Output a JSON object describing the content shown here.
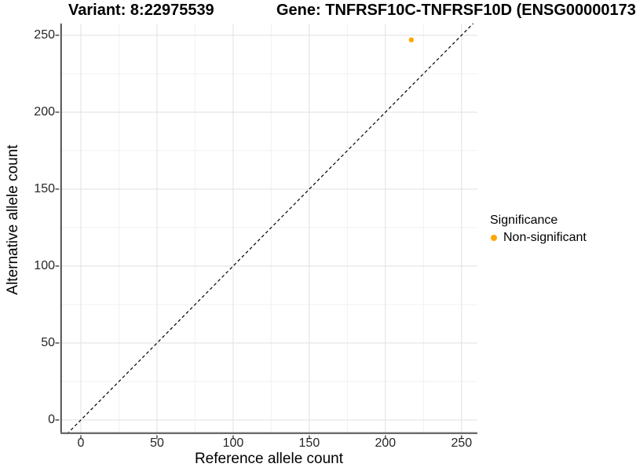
{
  "chart_data": {
    "type": "scatter",
    "title_left": "Variant: 8:22975539",
    "title_right": "Gene: TNFRSF10C-TNFRSF10D (ENSG00000173",
    "xlabel": "Reference allele count",
    "ylabel": "Alternative allele count",
    "x_ticks": [
      0,
      50,
      100,
      150,
      200,
      250
    ],
    "y_ticks": [
      0,
      50,
      100,
      150,
      200,
      250
    ],
    "xlim": [
      -13.4,
      260.4
    ],
    "ylim": [
      -9.2,
      257.6
    ],
    "grid": {
      "major": true,
      "minor": true
    },
    "reference_line": {
      "type": "identity-y-equals-x",
      "style": "dashed",
      "color": "#000000"
    },
    "points": [
      {
        "x": 217,
        "y": 247,
        "series": "Non-significant",
        "color": "#FFA500",
        "radius": 3.2
      }
    ],
    "legend": {
      "title": "Significance",
      "position": "right",
      "items": [
        {
          "label": "Non-significant",
          "color": "#FFA500"
        }
      ]
    },
    "colors": {
      "background": "#FFFFFF",
      "grid_major": "#E3E3E3",
      "grid_minor": "#F1F1F1",
      "y_axis_line": "#2E2E2E",
      "x_axis_line": "#6B6B6B",
      "tick_mark": "#333333",
      "tick_text": "#262626",
      "title_text": "#000000"
    }
  }
}
